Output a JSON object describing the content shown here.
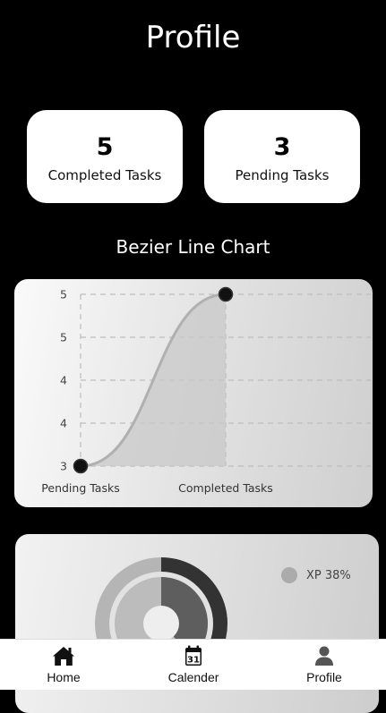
{
  "header": {
    "title": "Profile"
  },
  "stats": [
    {
      "value": "5",
      "label": "Completed Tasks"
    },
    {
      "value": "3",
      "label": "Pending Tasks"
    }
  ],
  "chart_section": {
    "title": "Bezier Line Chart"
  },
  "chart_data": [
    {
      "type": "line",
      "curve": "bezier",
      "filled": true,
      "categories": [
        "Pending Tasks",
        "Completed Tasks"
      ],
      "values": [
        3,
        5
      ],
      "ylim": [
        3,
        5
      ],
      "y_tick_labels": [
        "5",
        "5",
        "4",
        "4",
        "3"
      ],
      "grid": true,
      "grid_style": "dashed",
      "colors": {
        "line": "#b0b0b0",
        "fill": "#c8c8c8",
        "point": "#111111"
      }
    },
    {
      "type": "pie",
      "style": "concentric-rings",
      "series": [
        {
          "name": "XP",
          "percent": 38,
          "color": "#ababab"
        }
      ],
      "legend": {
        "position": "top-right",
        "entries": [
          "XP 38%"
        ]
      },
      "colors": {
        "outer_fill": "#333333",
        "inner_fill": "#5e5e5e",
        "track": "#b5b5b5"
      }
    }
  ],
  "nav": {
    "items": [
      {
        "label": "Home",
        "icon": "home-icon"
      },
      {
        "label": "Calender",
        "icon": "calendar-icon",
        "day": "31"
      },
      {
        "label": "Profile",
        "icon": "user-icon"
      }
    ]
  }
}
